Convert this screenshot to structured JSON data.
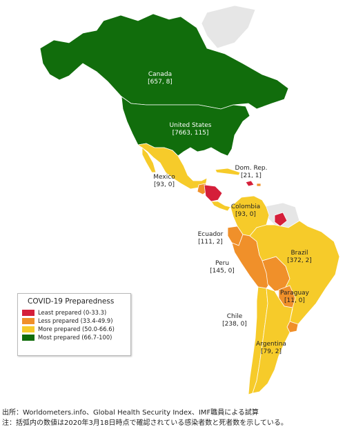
{
  "colors": {
    "least": "#d51f3a",
    "less": "#f0902a",
    "more": "#f6cb2a",
    "most": "#116d0c",
    "no_data": "#e6e6e6",
    "border": "#ffffff"
  },
  "countries": [
    {
      "id": "canada",
      "name": "Canada",
      "stats": "[657, 8]",
      "category": "most"
    },
    {
      "id": "united-states",
      "name": "United States",
      "stats": "[7663, 115]",
      "category": "most"
    },
    {
      "id": "mexico",
      "name": "Mexico",
      "stats": "[93, 0]",
      "category": "more"
    },
    {
      "id": "dom-rep",
      "name": "Dom. Rep.",
      "stats": "[21, 1]",
      "category": "least"
    },
    {
      "id": "colombia",
      "name": "Colombia",
      "stats": "[93, 0]",
      "category": "more"
    },
    {
      "id": "ecuador",
      "name": "Ecuador",
      "stats": "[111, 2]",
      "category": "less"
    },
    {
      "id": "peru",
      "name": "Peru",
      "stats": "[145, 0]",
      "category": "less"
    },
    {
      "id": "brazil",
      "name": "Brazil",
      "stats": "[372, 2]",
      "category": "more"
    },
    {
      "id": "paraguay",
      "name": "Paraguay",
      "stats": "[11, 0]",
      "category": "less"
    },
    {
      "id": "chile",
      "name": "Chile",
      "stats": "[238, 0]",
      "category": "more"
    },
    {
      "id": "argentina",
      "name": "Argentina",
      "stats": "[79, 2]",
      "category": "more"
    }
  ],
  "legend": {
    "title": "COVID-19 Preparedness",
    "items": [
      {
        "label": "Least prepared (0-33.3)",
        "color": "#d51f3a"
      },
      {
        "label": "Less prepared (33.4-49.9)",
        "color": "#f0902a"
      },
      {
        "label": "More prepared (50.0-66.6)",
        "color": "#f6cb2a"
      },
      {
        "label": "Most prepared (66.7-100)",
        "color": "#116d0c"
      }
    ]
  },
  "notes": {
    "source": "出所：Worldometers.info、Global Health Security Index、IMF職員による試算",
    "note": "注：括弧内の数値は2020年3月18日時点で確認されている感染者数と死者数を示している。"
  }
}
